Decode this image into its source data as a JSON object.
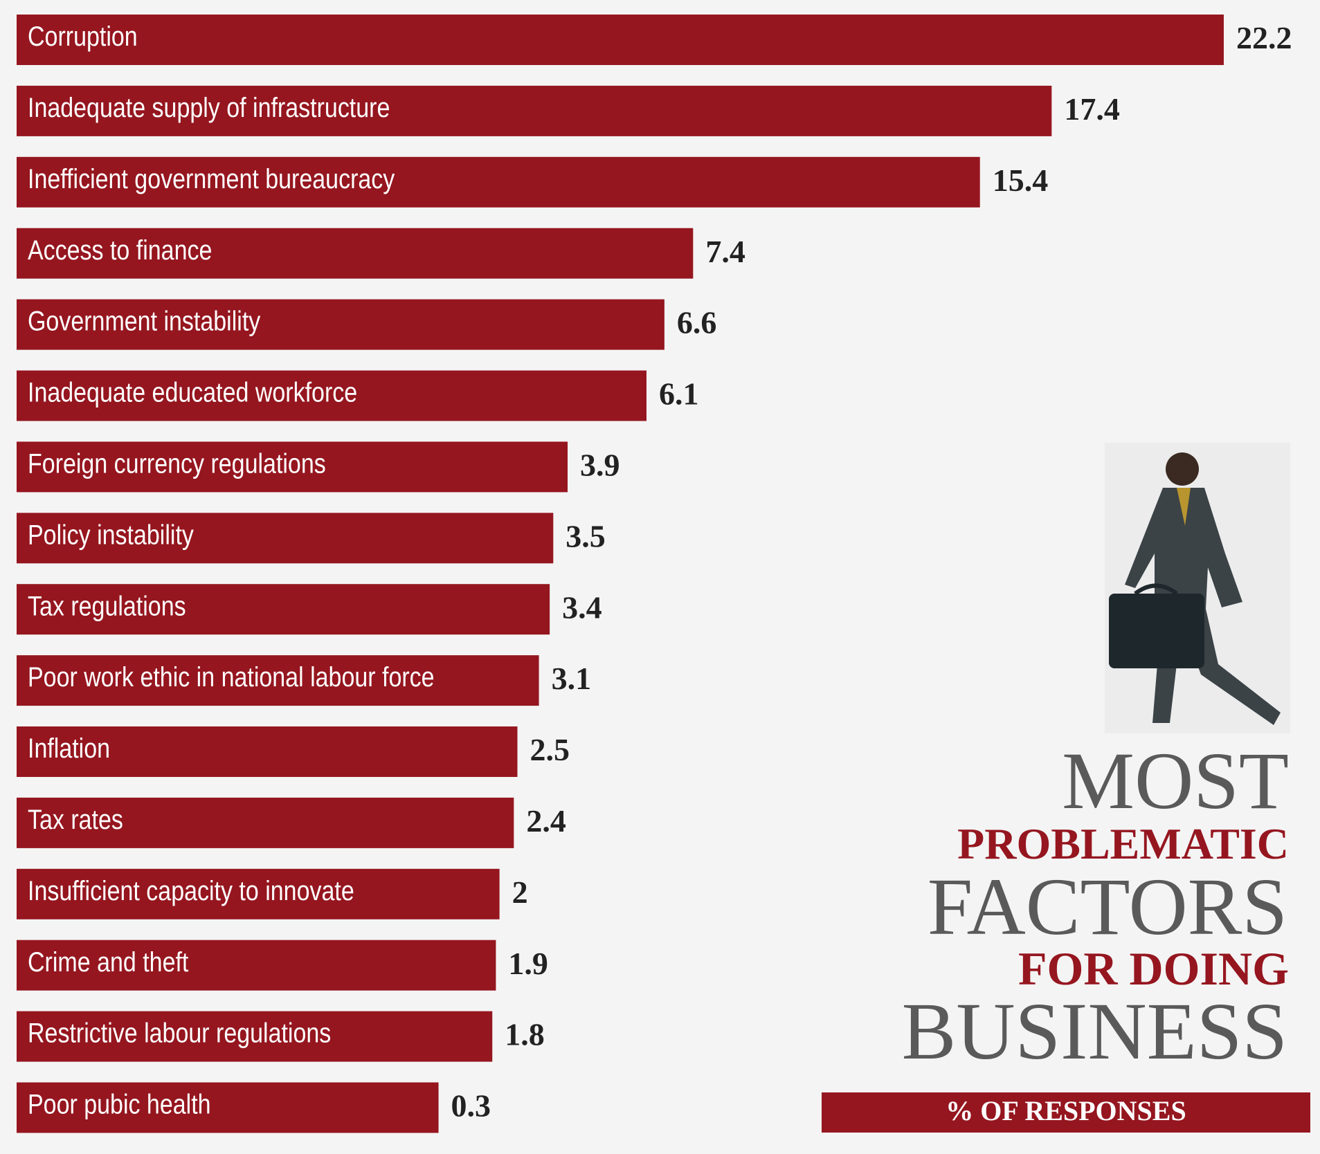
{
  "chart_data": {
    "type": "bar",
    "title_lines": [
      "MOST",
      "PROBLEMATIC",
      "FACTORS",
      "FOR DOING",
      "BUSINESS"
    ],
    "subtitle": "% OF RESPONSES",
    "categories": [
      "Corruption",
      "Inadequate supply of infrastructure",
      "Inefficient government bureaucracy",
      "Access to finance",
      "Government instability",
      "Inadequate educated workforce",
      "Foreign currency regulations",
      "Policy instability",
      "Tax regulations",
      "Poor work ethic in national labour force",
      "Inflation",
      "Tax rates",
      "Insufficient capacity  to innovate",
      "Crime and theft",
      "Restrictive labour regulations",
      "Poor pubic health"
    ],
    "values": [
      22.2,
      17.4,
      15.4,
      7.4,
      6.6,
      6.1,
      3.9,
      3.5,
      3.4,
      3.1,
      2.5,
      2.4,
      2,
      1.9,
      1.8,
      0.3
    ],
    "color": "#95161f"
  }
}
